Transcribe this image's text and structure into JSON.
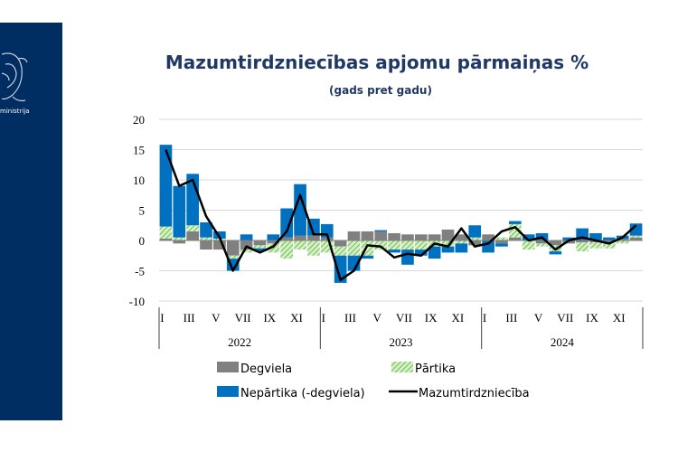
{
  "sidebar": {
    "ministry_text": "ministrija",
    "logo_icon": "coat-of-arms-icon",
    "background": "#002d62"
  },
  "chart_data": {
    "type": "bar",
    "title": "Mazumtirdzniecības apjomu pārmaiņas %",
    "subtitle": "(gads pret gadu)",
    "stacked": true,
    "ylim": [
      -10,
      20
    ],
    "yticks": [
      -10,
      -5,
      0,
      5,
      10,
      15,
      20
    ],
    "grid": true,
    "legend_position": "bottom",
    "categories": [
      "I",
      "II",
      "III",
      "IV",
      "V",
      "VI",
      "VII",
      "VIII",
      "IX",
      "X",
      "XI",
      "XII",
      "I",
      "II",
      "III",
      "IV",
      "V",
      "VI",
      "VII",
      "VIII",
      "IX",
      "X",
      "XI",
      "XII",
      "I",
      "II",
      "III",
      "IV",
      "V",
      "VI",
      "VII",
      "VIII",
      "IX",
      "X",
      "XI",
      "XII"
    ],
    "xtick_labels": [
      "I",
      "III",
      "V",
      "VII",
      "IX",
      "XI",
      "I",
      "III",
      "V",
      "VII",
      "IX",
      "XI",
      "I",
      "III",
      "V",
      "VII",
      "IX",
      "XI"
    ],
    "year_labels": [
      "2022",
      "2023",
      "2024"
    ],
    "series": [
      {
        "name": "Degviela",
        "kind": "bar",
        "color": "#808080",
        "values": [
          0.3,
          -0.5,
          1.5,
          -1.5,
          -1.5,
          -2.5,
          -1.5,
          -0.8,
          -0.5,
          0.5,
          0.8,
          0.8,
          0.5,
          -1.0,
          1.5,
          1.5,
          1.5,
          1.2,
          1.0,
          1.0,
          1.0,
          1.8,
          1.0,
          -0.8,
          1.0,
          -0.5,
          0.5,
          0.0,
          -0.5,
          -0.8,
          -0.5,
          -0.3,
          -0.3,
          -0.3,
          0.3,
          0.5
        ]
      },
      {
        "name": "Pārtika",
        "kind": "bar",
        "color": "#92d050",
        "values": [
          2.0,
          0.5,
          1.0,
          0.5,
          0.3,
          -0.5,
          -0.5,
          -0.5,
          -1.5,
          -3.0,
          -1.5,
          -2.5,
          -2.0,
          -1.5,
          -2.5,
          -2.5,
          -1.5,
          -1.5,
          -1.5,
          -1.5,
          -1.0,
          -1.0,
          -0.5,
          0.5,
          0.0,
          0.5,
          2.2,
          -1.5,
          -0.5,
          -1.0,
          0.0,
          -1.5,
          -1.0,
          -1.0,
          -0.5,
          0.3
        ]
      },
      {
        "name": "Nepārtika (-degviela)",
        "kind": "bar",
        "color": "#0070c0",
        "values": [
          13.5,
          8.5,
          8.5,
          2.5,
          1.2,
          -2.0,
          1.0,
          -0.5,
          1.0,
          4.8,
          8.5,
          2.8,
          2.2,
          -4.5,
          -2.5,
          -0.5,
          0.2,
          -0.5,
          -2.5,
          -1.0,
          -2.0,
          -1.0,
          -1.5,
          2.0,
          -2.0,
          -0.5,
          0.5,
          1.0,
          1.2,
          -0.5,
          0.5,
          2.0,
          1.2,
          0.5,
          0.5,
          2.0
        ]
      },
      {
        "name": "Mazumtirdzniecība",
        "kind": "line",
        "color": "#000000",
        "values": [
          15.0,
          9.0,
          10.0,
          4.0,
          0.5,
          -5.0,
          -1.0,
          -2.0,
          -1.0,
          1.5,
          7.5,
          1.0,
          1.0,
          -6.5,
          -5.0,
          -0.8,
          -1.0,
          -2.8,
          -2.2,
          -2.5,
          -0.5,
          -1.0,
          2.0,
          -1.0,
          -0.5,
          1.5,
          2.2,
          0.0,
          0.5,
          -1.5,
          0.0,
          0.5,
          0.0,
          -0.5,
          0.5,
          2.5
        ]
      }
    ]
  }
}
